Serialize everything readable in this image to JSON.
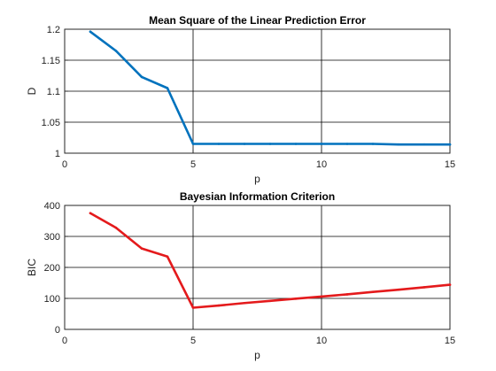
{
  "chart_data": [
    {
      "type": "line",
      "title": "Mean Square of the Linear Prediction Error",
      "xlabel": "p",
      "ylabel": "D",
      "xlim": [
        0,
        15
      ],
      "ylim": [
        1,
        1.2
      ],
      "xticks": [
        "0",
        "5",
        "10",
        "15"
      ],
      "yticks": [
        "1",
        "1.05",
        "1.1",
        "1.15",
        "1.2"
      ],
      "grid": true,
      "series": [
        {
          "color": "#0072BD",
          "x": [
            1,
            2,
            3,
            4,
            5,
            6,
            7,
            8,
            9,
            10,
            11,
            12,
            13,
            14,
            15
          ],
          "y": [
            1.196,
            1.165,
            1.123,
            1.105,
            1.015,
            1.015,
            1.015,
            1.015,
            1.015,
            1.015,
            1.015,
            1.015,
            1.014,
            1.014,
            1.014
          ]
        }
      ]
    },
    {
      "type": "line",
      "title": "Bayesian Information Criterion",
      "xlabel": "p",
      "ylabel": "BIC",
      "xlim": [
        0,
        15
      ],
      "ylim": [
        0,
        400
      ],
      "xticks": [
        "0",
        "5",
        "10",
        "15"
      ],
      "yticks": [
        "0",
        "100",
        "200",
        "300",
        "400"
      ],
      "grid": true,
      "series": [
        {
          "color": "#E41A1C",
          "x": [
            1,
            2,
            3,
            4,
            5,
            6,
            7,
            8,
            9,
            10,
            11,
            12,
            13,
            14,
            15
          ],
          "y": [
            375,
            328,
            261,
            235,
            70,
            77,
            85,
            92,
            99,
            106,
            113,
            121,
            128,
            136,
            144
          ]
        }
      ]
    }
  ]
}
